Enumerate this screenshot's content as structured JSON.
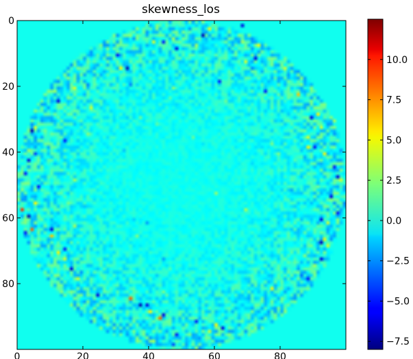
{
  "chart_data": {
    "type": "heatmap",
    "title": "skewness_los",
    "xlabel": "",
    "ylabel": "",
    "grid_size": [
      100,
      100
    ],
    "xlim": [
      0,
      99
    ],
    "ylim": [
      99,
      0
    ],
    "x_ticks": [
      0,
      20,
      40,
      60,
      80
    ],
    "y_ticks": [
      0,
      20,
      40,
      60,
      80
    ],
    "x_tick_labels": [
      "0",
      "20",
      "40",
      "60",
      "80"
    ],
    "y_tick_labels": [
      "0",
      "20",
      "40",
      "60",
      "80"
    ],
    "colormap": "jet",
    "colorbar": {
      "range": [
        -8.0,
        12.5
      ],
      "ticks": [
        -7.5,
        -5.0,
        -2.5,
        0.0,
        2.5,
        5.0,
        7.5,
        10.0
      ],
      "tick_labels": [
        "−7.5",
        "−5.0",
        "−2.5",
        "0.0",
        "2.5",
        "5.0",
        "7.5",
        "10.0"
      ]
    },
    "background_value": 0.0,
    "texture": {
      "description_free": true,
      "ring_center": [
        49.5,
        49.5
      ],
      "outer_radius": 50,
      "bright_pixels": [
        [
          2,
          58
        ],
        [
          5,
          47
        ],
        [
          6,
          41
        ],
        [
          6,
          68
        ],
        [
          7,
          54
        ],
        [
          12,
          69
        ],
        [
          14,
          31
        ],
        [
          20,
          17
        ],
        [
          22,
          85
        ],
        [
          26,
          22
        ],
        [
          28,
          91
        ],
        [
          30,
          96
        ],
        [
          32,
          5
        ],
        [
          35,
          88
        ],
        [
          38,
          88
        ],
        [
          39,
          3
        ],
        [
          40,
          5
        ],
        [
          40,
          93
        ],
        [
          46,
          2
        ],
        [
          48,
          98
        ],
        [
          55,
          5
        ],
        [
          57,
          1
        ],
        [
          58,
          97
        ],
        [
          61,
          94
        ],
        [
          63,
          4
        ],
        [
          65,
          10
        ],
        [
          66,
          93
        ],
        [
          68,
          94
        ],
        [
          70,
          12
        ],
        [
          72,
          14
        ],
        [
          74,
          90
        ],
        [
          78,
          18
        ],
        [
          81,
          77
        ],
        [
          84,
          34
        ],
        [
          86,
          39
        ],
        [
          88,
          40
        ],
        [
          90,
          43
        ],
        [
          92,
          60
        ],
        [
          94,
          58
        ],
        [
          97,
          41
        ]
      ],
      "bright_values": [
        5,
        3,
        4,
        3,
        3,
        4,
        5,
        4,
        6,
        4,
        5,
        3,
        4,
        4,
        5,
        3,
        -4,
        5,
        -5,
        4,
        5,
        9,
        -5,
        4,
        8,
        6,
        5,
        4,
        5,
        4,
        3,
        4,
        5,
        8,
        -6,
        5,
        8,
        5,
        4,
        3
      ],
      "dark_pixels": [
        [
          1,
          68
        ],
        [
          4,
          56
        ],
        [
          6,
          44
        ],
        [
          8,
          48
        ],
        [
          10,
          30
        ],
        [
          11,
          72
        ],
        [
          14,
          33
        ],
        [
          18,
          61
        ],
        [
          21,
          75
        ],
        [
          24,
          12
        ],
        [
          29,
          89
        ],
        [
          33,
          4
        ],
        [
          36,
          14
        ],
        [
          38,
          90
        ],
        [
          42,
          3
        ],
        [
          44,
          96
        ],
        [
          47,
          97
        ],
        [
          50,
          6
        ],
        [
          53,
          95
        ],
        [
          59,
          3
        ],
        [
          60,
          92
        ],
        [
          63,
          10
        ],
        [
          64,
          2
        ],
        [
          67,
          92
        ],
        [
          69,
          14
        ],
        [
          72,
          92
        ],
        [
          75,
          16
        ],
        [
          78,
          88
        ],
        [
          83,
          24
        ],
        [
          86,
          37
        ],
        [
          89,
          44
        ],
        [
          91,
          54
        ],
        [
          93,
          62
        ],
        [
          95,
          48
        ]
      ],
      "dark_values": [
        -6,
        -7,
        -5,
        -6,
        -5,
        -6,
        -7,
        -5,
        -5,
        -6,
        -6,
        -7,
        -5,
        -5,
        -6,
        -5,
        -6,
        -5,
        -6,
        -7,
        -6,
        -6,
        -5,
        -7,
        -5,
        -6,
        -6,
        -5,
        -6,
        -7,
        -6,
        -5,
        -6,
        -5
      ]
    }
  }
}
